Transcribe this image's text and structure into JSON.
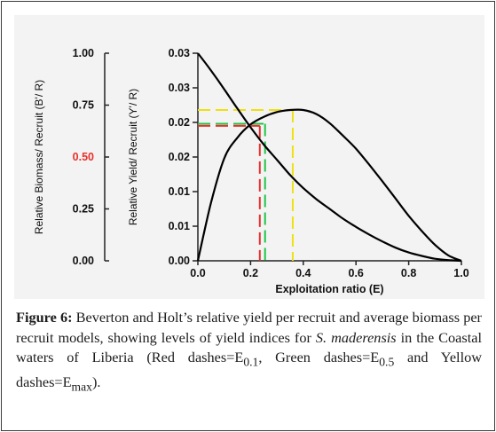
{
  "chart_data": {
    "type": "line",
    "x": [
      0.0,
      0.05,
      0.1,
      0.15,
      0.2,
      0.25,
      0.3,
      0.35,
      0.4,
      0.45,
      0.5,
      0.55,
      0.6,
      0.65,
      0.7,
      0.75,
      0.8,
      0.85,
      0.9,
      0.95,
      1.0
    ],
    "series": [
      {
        "values": [
          0.03,
          0.0275,
          0.0248,
          0.022,
          0.0193,
          0.0168,
          0.0146,
          0.0124,
          0.0105,
          0.0089,
          0.0075,
          0.0061,
          0.0049,
          0.0038,
          0.0028,
          0.0019,
          0.0012,
          0.0007,
          0.0003,
          0.0001,
          0.0
        ]
      },
      {
        "values": [
          0.0,
          0.0084,
          0.0148,
          0.0178,
          0.0197,
          0.0208,
          0.0215,
          0.0218,
          0.0218,
          0.0212,
          0.0199,
          0.0181,
          0.0162,
          0.0139,
          0.0115,
          0.009,
          0.0065,
          0.0043,
          0.0023,
          0.0008,
          0.0
        ]
      }
    ],
    "xlabel": "Exploitation ratio (E)",
    "ylabel_left": "Relative Biomass/ Recruit (B'/ R)",
    "ylabel_right": "Relative Yield/ Recruit (Y'/ R)",
    "xlim": [
      0,
      1.0
    ],
    "ylim": [
      0,
      0.03
    ],
    "ylim_left": [
      0,
      1.0
    ],
    "xticks": [
      "0.0",
      "0.2",
      "0.4",
      "0.6",
      "0.8",
      "1.0"
    ],
    "yticks": [
      "0.00",
      "0.01",
      "0.01",
      "0.02",
      "0.02",
      "0.03",
      "0.03"
    ],
    "yticks_left": [
      "0.00",
      "0.25",
      "0.50",
      "0.75",
      "1.00"
    ],
    "highlight_tick": {
      "label": "0.50",
      "color": "#e8302c"
    },
    "reference_lines": [
      {
        "label": "E0.1",
        "x": 0.235,
        "y": 0.0195,
        "color": "#e8302c"
      },
      {
        "label": "E0.5",
        "x": 0.255,
        "y": 0.0198,
        "color": "#22c44a"
      },
      {
        "label": "Emax",
        "x": 0.36,
        "y": 0.0218,
        "color": "#f0e010"
      }
    ],
    "grid": false
  },
  "caption": {
    "figure_label": "Figure 6:",
    "part1": " Beverton and Holt’s relative yield per recruit and average biomass per recruit models, showing levels of yield indices for ",
    "species": "S. maderensis",
    "part2": " in the Coastal waters of Liberia (Red dashes=E",
    "sub1": "0.1",
    "part3": ", Green dashes=E",
    "sub2": "0.5",
    "part4": " and Yellow dashes=E",
    "sub3": "max",
    "part5": ")."
  },
  "colors": {
    "curve": "#000000",
    "panel_background": "#f3f3f3",
    "axis": "#222222"
  }
}
